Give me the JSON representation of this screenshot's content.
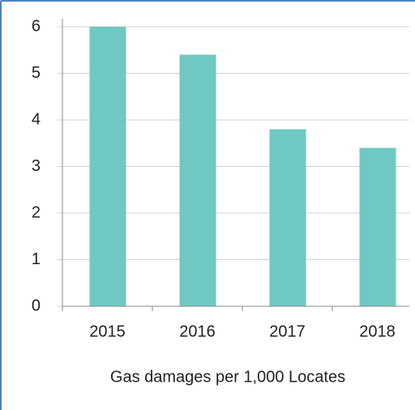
{
  "chart_data": {
    "type": "bar",
    "x_label": "Gas damages per 1,000 Locates",
    "categories": [
      "2015",
      "2016",
      "2017",
      "2018"
    ],
    "values": [
      6.0,
      5.4,
      3.8,
      3.4
    ],
    "color": "#6fc8c2",
    "ylim": [
      0,
      6
    ],
    "yticks": [
      0,
      1,
      2,
      3,
      4,
      5,
      6
    ],
    "grid": true
  }
}
